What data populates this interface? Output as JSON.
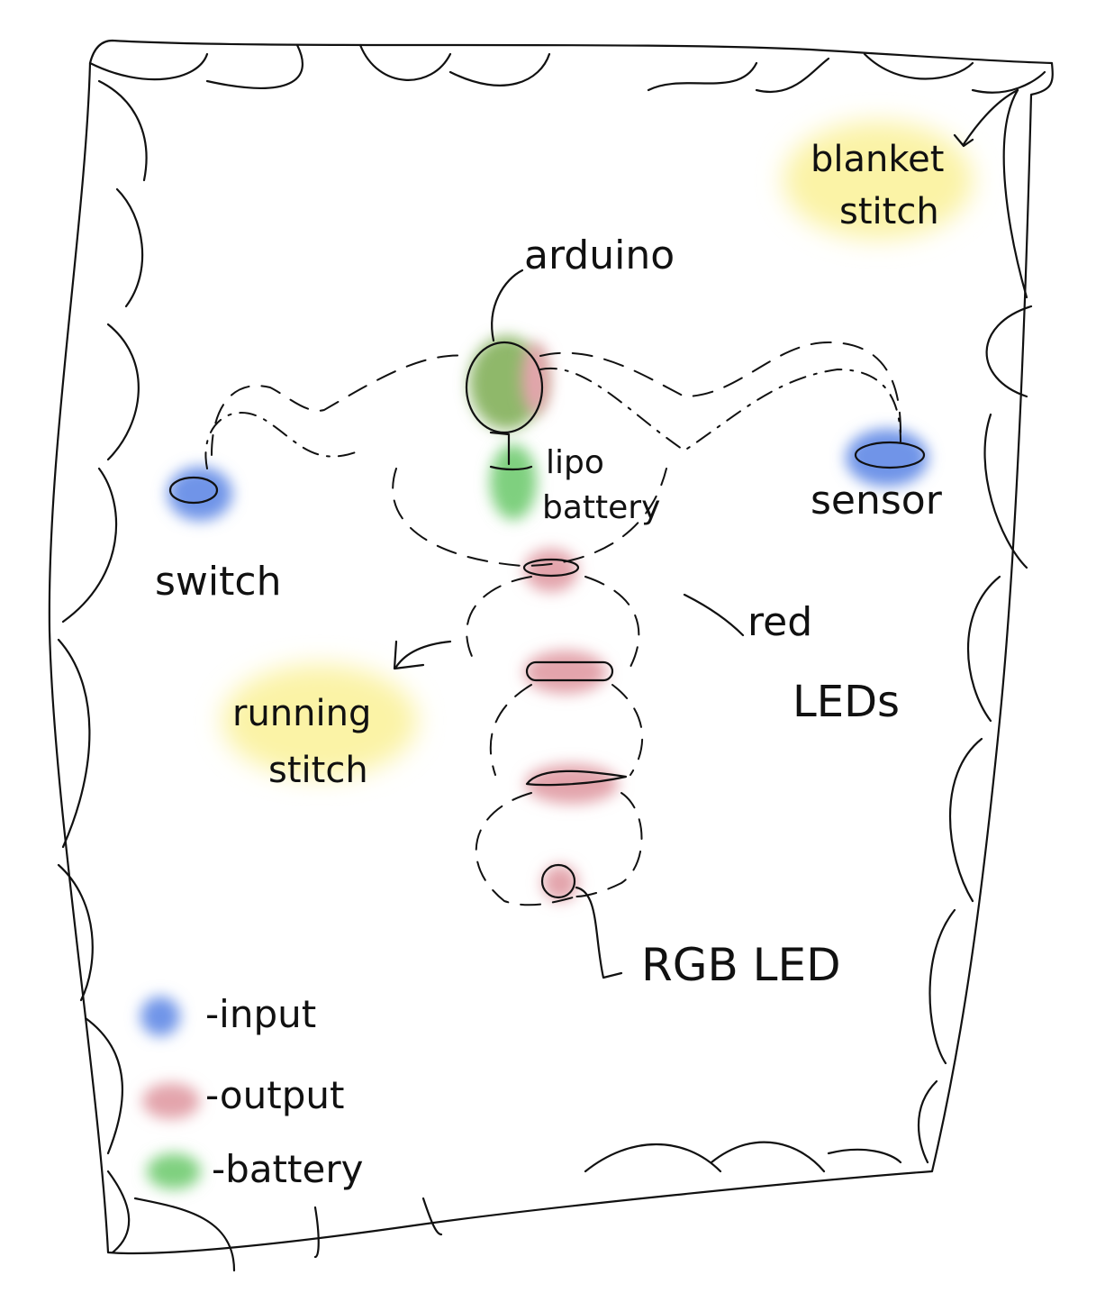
{
  "labels": {
    "arduino": "arduino",
    "lipo_line1": "lipo",
    "lipo_line2": "battery",
    "switch": "switch",
    "sensor": "sensor",
    "red_leds_line1": "red",
    "red_leds_line2": "LEDs",
    "rgb_led": "RGB LED",
    "running_stitch_line1": "running",
    "running_stitch_line2": "stitch",
    "blanket_stitch_line1": "blanket",
    "blanket_stitch_line2": "stitch"
  },
  "legend": {
    "items": [
      {
        "label": "-input",
        "color": "#6f94e8"
      },
      {
        "label": "-output",
        "color": "#e3a4ac"
      },
      {
        "label": "-battery",
        "color": "#7fd07f"
      }
    ]
  },
  "colors": {
    "input": "#6f94e8",
    "output": "#e3a4ac",
    "battery": "#7fd07f",
    "arduino": "#8fb86a",
    "highlight": "#fbf3a6",
    "ink": "#111111"
  }
}
